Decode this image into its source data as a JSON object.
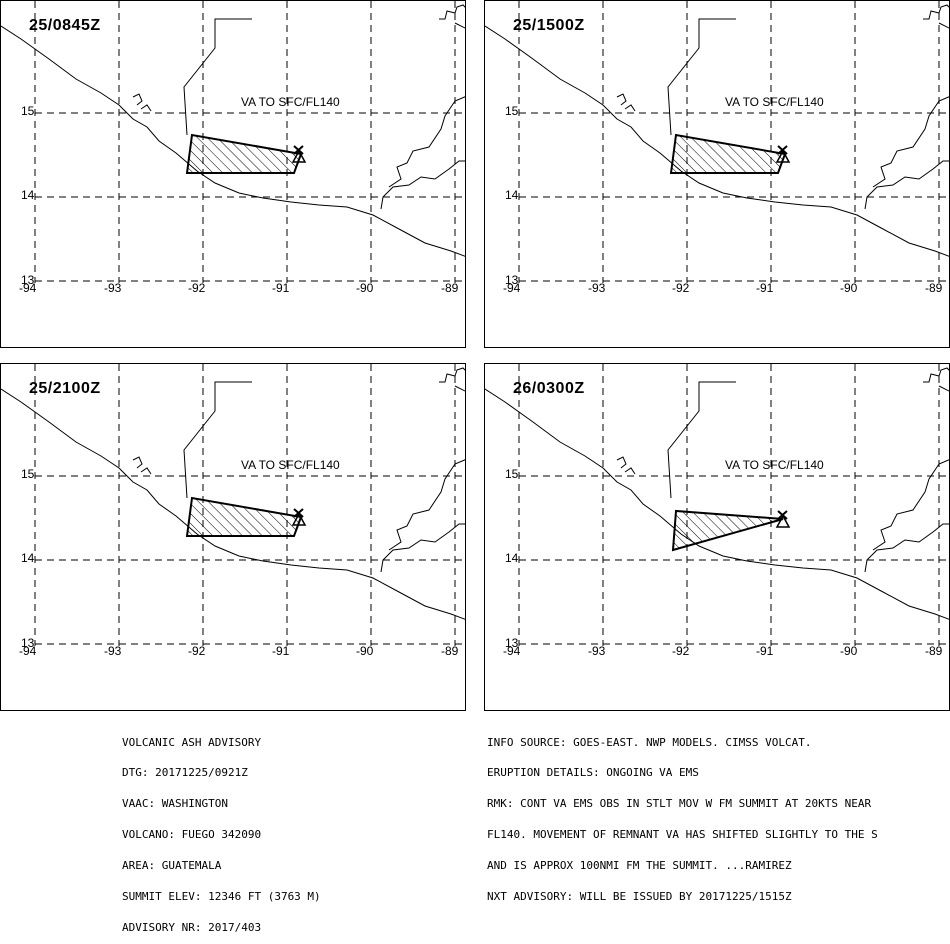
{
  "panels": [
    {
      "time": "25/0845Z",
      "va_label": "VA TO SFC/FL140"
    },
    {
      "time": "25/1500Z",
      "va_label": "VA TO SFC/FL140"
    },
    {
      "time": "25/2100Z",
      "va_label": "VA TO SFC/FL140"
    },
    {
      "time": "26/0300Z",
      "va_label": "VA TO SFC/FL140"
    }
  ],
  "lat_labels": [
    "15",
    "14",
    "13"
  ],
  "lon_labels": [
    "-94",
    "-93",
    "-92",
    "-91",
    "-90",
    "-89"
  ],
  "advisory": {
    "line1": "VOLCANIC ASH ADVISORY",
    "line2": "DTG: 20171225/0921Z",
    "line3": "VAAC: WASHINGTON",
    "line4": "VOLCANO: FUEGO 342090",
    "line5": "AREA: GUATEMALA",
    "line6": "SUMMIT ELEV: 12346 FT (3763 M)",
    "line7": "ADVISORY NR: 2017/403"
  },
  "info": {
    "line1": "INFO SOURCE: GOES-EAST. NWP MODELS. CIMSS VOLCAT.",
    "line2": "ERUPTION DETAILS: ONGOING VA EMS",
    "line3": "RMK: CONT VA EMS OBS IN STLT MOV W FM SUMMIT AT 20KTS NEAR",
    "line4": "FL140. MOVEMENT OF REMNANT VA HAS SHIFTED SLIGHTLY TO THE S",
    "line5": "AND IS APPROX 100NMI FM THE SUMMIT. ...RAMIREZ",
    "line6": "NXT ADVISORY: WILL BE ISSUED BY 20171225/1515Z"
  }
}
